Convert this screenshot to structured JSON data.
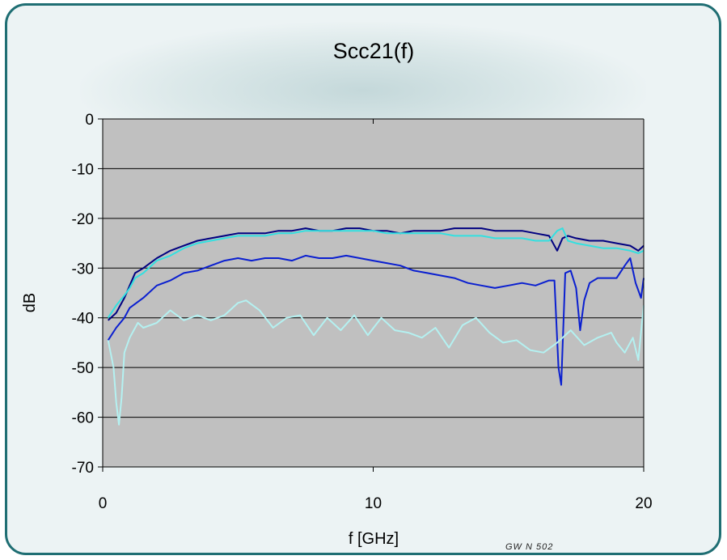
{
  "colors": {
    "frame_border": "#1f6e73",
    "frame_bg": "#ecf3f4",
    "plot_bg": "#c0c0c0",
    "series": [
      "#000080",
      "#33e0e0",
      "#0a1fd0",
      "#b4f1f1"
    ]
  },
  "chart_data": {
    "type": "line",
    "title": "Scc21(f)",
    "xlabel": "f [GHz]",
    "ylabel": "dB",
    "xlim": [
      0,
      20
    ],
    "ylim": [
      -70,
      0
    ],
    "xticks": [
      0,
      10,
      20
    ],
    "yticks": [
      0,
      -10,
      -20,
      -30,
      -40,
      -50,
      -60,
      -70
    ],
    "grid": "horizontal",
    "legend": "none",
    "footer_note": "GW N 502",
    "series": [
      {
        "color": "#000080",
        "x": [
          0.2,
          0.5,
          0.8,
          1.0,
          1.2,
          1.5,
          2.0,
          2.5,
          3.0,
          3.5,
          4.0,
          4.5,
          5.0,
          5.5,
          6.0,
          6.5,
          7.0,
          7.5,
          8.0,
          8.5,
          9.0,
          9.5,
          10.0,
          10.5,
          11.0,
          11.5,
          12.0,
          12.5,
          13.0,
          13.5,
          14.0,
          14.5,
          15.0,
          15.5,
          16.0,
          16.5,
          16.8,
          17.0,
          17.2,
          17.5,
          18.0,
          18.5,
          19.0,
          19.5,
          19.8,
          20.0
        ],
        "y": [
          -40.5,
          -39,
          -36,
          -33.5,
          -31,
          -30,
          -28,
          -26.5,
          -25.5,
          -24.5,
          -24,
          -23.5,
          -23,
          -23,
          -23,
          -22.5,
          -22.5,
          -22,
          -22.5,
          -22.5,
          -22,
          -22,
          -22.5,
          -22.5,
          -23,
          -22.5,
          -22.5,
          -22.5,
          -22,
          -22,
          -22,
          -22.5,
          -22.5,
          -22.5,
          -23,
          -23.5,
          -26.5,
          -24,
          -23.5,
          -24,
          -24.5,
          -24.5,
          -25,
          -25.5,
          -26.5,
          -25.5
        ]
      },
      {
        "color": "#33e0e0",
        "x": [
          0.2,
          0.5,
          0.8,
          1.0,
          1.2,
          1.5,
          2.0,
          2.5,
          3.0,
          3.5,
          4.0,
          4.5,
          5.0,
          5.5,
          6.0,
          6.5,
          7.0,
          7.5,
          8.0,
          8.5,
          9.0,
          9.5,
          10.0,
          10.5,
          11.0,
          11.5,
          12.0,
          12.5,
          13.0,
          13.5,
          14.0,
          14.5,
          15.0,
          15.5,
          16.0,
          16.5,
          16.8,
          17.0,
          17.2,
          17.5,
          18.0,
          18.5,
          19.0,
          19.5,
          19.8,
          20.0
        ],
        "y": [
          -40,
          -37.5,
          -35.5,
          -34,
          -32,
          -31,
          -28.5,
          -27.5,
          -26,
          -25,
          -24.5,
          -24,
          -23.5,
          -23.5,
          -23.5,
          -23,
          -23,
          -22.5,
          -22.5,
          -22.5,
          -22.5,
          -22.5,
          -22.5,
          -23,
          -23,
          -23,
          -23,
          -23,
          -23.5,
          -23.5,
          -23.5,
          -24,
          -24,
          -24,
          -24.5,
          -24.5,
          -22.5,
          -22,
          -24.5,
          -25,
          -25.5,
          -26,
          -26,
          -26.5,
          -27,
          -26.5
        ]
      },
      {
        "color": "#0a1fd0",
        "x": [
          0.2,
          0.5,
          0.8,
          1.0,
          1.5,
          2.0,
          2.5,
          3.0,
          3.5,
          4.0,
          4.5,
          5.0,
          5.5,
          6.0,
          6.5,
          7.0,
          7.5,
          8.0,
          8.5,
          9.0,
          9.5,
          10.0,
          10.5,
          11.0,
          11.5,
          12.0,
          12.5,
          13.0,
          13.5,
          14.0,
          14.5,
          15.0,
          15.5,
          16.0,
          16.5,
          16.7,
          16.85,
          16.95,
          17.1,
          17.3,
          17.5,
          17.65,
          17.8,
          18.0,
          18.3,
          18.6,
          19.0,
          19.3,
          19.5,
          19.7,
          19.9,
          20.0
        ],
        "y": [
          -44.5,
          -42,
          -40,
          -38,
          -36,
          -33.5,
          -32.5,
          -31,
          -30.5,
          -29.5,
          -28.5,
          -28,
          -28.5,
          -28,
          -28,
          -28.5,
          -27.5,
          -28,
          -28,
          -27.5,
          -28,
          -28.5,
          -29,
          -29.5,
          -30.5,
          -31,
          -31.5,
          -32,
          -33,
          -33.5,
          -34,
          -33.5,
          -33,
          -33.5,
          -32.5,
          -32.5,
          -50,
          -53.5,
          -31,
          -30.5,
          -34,
          -42.5,
          -36.5,
          -33,
          -32,
          -32,
          -32,
          -29.5,
          -28,
          -33,
          -36,
          -32
        ]
      },
      {
        "color": "#b4f1f1",
        "x": [
          0.2,
          0.4,
          0.5,
          0.6,
          0.7,
          0.8,
          1.0,
          1.3,
          1.5,
          2.0,
          2.5,
          3.0,
          3.5,
          4.0,
          4.5,
          5.0,
          5.3,
          5.8,
          6.3,
          6.8,
          7.3,
          7.8,
          8.3,
          8.8,
          9.3,
          9.8,
          10.3,
          10.8,
          11.3,
          11.8,
          12.3,
          12.8,
          13.3,
          13.8,
          14.3,
          14.8,
          15.3,
          15.8,
          16.3,
          16.8,
          17.3,
          17.8,
          18.3,
          18.8,
          19.0,
          19.3,
          19.6,
          19.8,
          20.0
        ],
        "y": [
          -44.5,
          -50,
          -57,
          -61.5,
          -56,
          -47,
          -44,
          -41,
          -42,
          -41,
          -38.5,
          -40.5,
          -39.5,
          -40.5,
          -39.5,
          -37,
          -36.5,
          -38.5,
          -42,
          -40,
          -39.5,
          -43.5,
          -40,
          -42.5,
          -39.5,
          -43.5,
          -40,
          -42.5,
          -43,
          -44,
          -42,
          -46,
          -41.5,
          -40,
          -43,
          -45,
          -44.5,
          -46.5,
          -47,
          -45,
          -42.5,
          -45.5,
          -44,
          -43,
          -45,
          -47,
          -44,
          -48.5,
          -37.5
        ]
      }
    ]
  }
}
